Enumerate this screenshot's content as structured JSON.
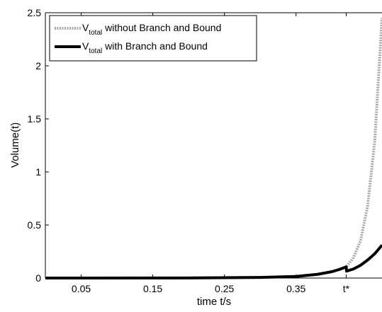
{
  "chart_data": {
    "type": "line",
    "title": "",
    "xlabel": "time t/s",
    "ylabel": "Volume(t)",
    "xlim": [
      0,
      0.47
    ],
    "ylim": [
      0,
      2.5
    ],
    "grid": false,
    "legend_position": "top-left",
    "x_ticks": [
      {
        "value": 0.05,
        "label": "0.05"
      },
      {
        "value": 0.15,
        "label": "0.15"
      },
      {
        "value": 0.25,
        "label": "0.25"
      },
      {
        "value": 0.35,
        "label": "0.35"
      },
      {
        "value": 0.42,
        "label": "t*"
      }
    ],
    "y_ticks": [
      {
        "value": 0,
        "label": "0"
      },
      {
        "value": 0.5,
        "label": "0.5"
      },
      {
        "value": 1,
        "label": "1"
      },
      {
        "value": 1.5,
        "label": "1.5"
      },
      {
        "value": 2,
        "label": "2"
      },
      {
        "value": 2.5,
        "label": "2.5"
      }
    ],
    "series": [
      {
        "legend_main": "V",
        "legend_sub": "total",
        "legend_rest": " without Branch and Bound",
        "color": "#a8a8a8",
        "style": "dotted",
        "x": [
          0,
          0.2,
          0.3,
          0.35,
          0.38,
          0.4,
          0.41,
          0.42,
          0.43,
          0.44,
          0.45,
          0.46,
          0.47
        ],
        "y": [
          0,
          0.001,
          0.006,
          0.015,
          0.035,
          0.06,
          0.08,
          0.105,
          0.19,
          0.35,
          0.68,
          1.3,
          2.45
        ]
      },
      {
        "legend_main": "V",
        "legend_sub": "total",
        "legend_rest": " with Branch and Bound",
        "color": "#000000",
        "style": "solid",
        "x": [
          0,
          0.2,
          0.3,
          0.35,
          0.38,
          0.4,
          0.41,
          0.42,
          0.4205,
          0.43,
          0.44,
          0.45,
          0.46,
          0.47
        ],
        "y": [
          0,
          0.001,
          0.006,
          0.015,
          0.035,
          0.06,
          0.08,
          0.105,
          0.065,
          0.085,
          0.12,
          0.17,
          0.23,
          0.31
        ]
      }
    ]
  }
}
